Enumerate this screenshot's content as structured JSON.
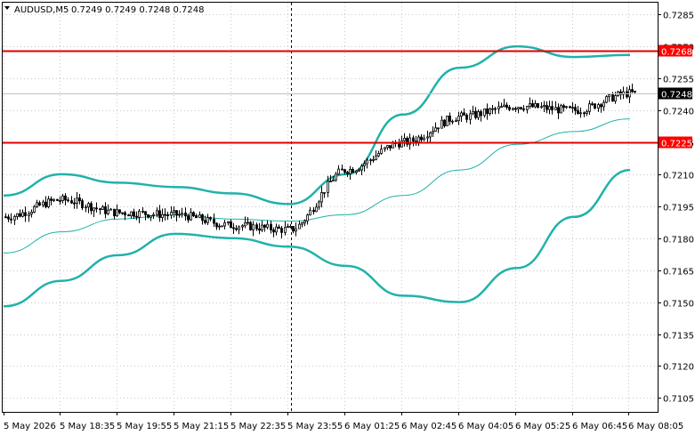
{
  "header": {
    "symbol": "AUDUSD,M5",
    "ohlc": "0.7249 0.7249 0.7248 0.7248"
  },
  "price_axis": {
    "ticks": [
      "0.7285",
      "0.7270",
      "0.7255",
      "0.7240",
      "0.7225",
      "0.7210",
      "0.7195",
      "0.7180",
      "0.7165",
      "0.7150",
      "0.7135",
      "0.7120",
      "0.7105"
    ],
    "ymin": 0.70985,
    "ymax": 0.72905
  },
  "levels": [
    {
      "label": "0.7268",
      "price": 0.7268,
      "color": "#ff0000",
      "line_color": "#e00000"
    },
    {
      "label": "0.7225",
      "price": 0.7225,
      "color": "#ff0000",
      "line_color": "#e00000"
    }
  ],
  "current_price": {
    "label": "0.7248",
    "price": 0.7248,
    "color": "#000000"
  },
  "time_axis": {
    "labels": [
      "5 May 2026",
      "5 May 18:35",
      "5 May 19:55",
      "5 May 21:15",
      "5 May 22:35",
      "5 May 23:55",
      "6 May 01:25",
      "6 May 02:45",
      "6 May 04:05",
      "6 May 05:25",
      "6 May 06:45",
      "6 May 08:05"
    ]
  },
  "colors": {
    "band": "#20b2aa",
    "ma": "#20b2aa",
    "candle": "#000000",
    "grid": "#c8c8c8",
    "separator": "#000000"
  },
  "chart_data": {
    "type": "candlestick",
    "symbol": "AUDUSD",
    "timeframe": "M5",
    "x": [
      "5 May 2026",
      "5 May 18:35",
      "5 May 19:55",
      "5 May 21:15",
      "5 May 22:35",
      "5 May 23:55",
      "6 May 01:25",
      "6 May 02:45",
      "6 May 04:05",
      "6 May 05:25",
      "6 May 06:45",
      "6 May 08:05"
    ],
    "close": [
      0.719,
      0.7198,
      0.7192,
      0.7191,
      0.7186,
      0.7184,
      0.7212,
      0.7225,
      0.7237,
      0.7242,
      0.724,
      0.7248
    ],
    "ylim": [
      0.70985,
      0.72905
    ],
    "bollinger_upper": [
      0.72,
      0.721,
      0.7206,
      0.7204,
      0.7201,
      0.7196,
      0.721,
      0.7238,
      0.726,
      0.727,
      0.7265,
      0.7266
    ],
    "bollinger_lower": [
      0.7148,
      0.716,
      0.7172,
      0.7182,
      0.718,
      0.7176,
      0.7167,
      0.7153,
      0.715,
      0.7166,
      0.719,
      0.7212
    ],
    "moving_average": [
      0.7173,
      0.7183,
      0.7189,
      0.7191,
      0.7189,
      0.7188,
      0.7191,
      0.72,
      0.7212,
      0.7224,
      0.723,
      0.7236
    ],
    "horizontal_levels": [
      0.7268,
      0.7225
    ]
  }
}
